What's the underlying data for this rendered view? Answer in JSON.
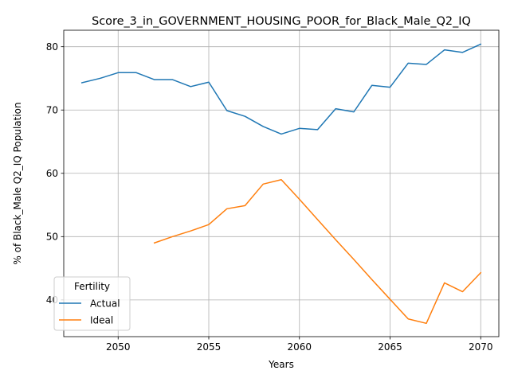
{
  "chart_data": {
    "type": "line",
    "title": "Score_3_in_GOVERNMENT_HOUSING_POOR_for_Black_Male_Q2_IQ",
    "xlabel": "Years",
    "ylabel": "% of Black_Male Q2_IQ Population",
    "xlim": [
      2047,
      2071
    ],
    "ylim": [
      34.2,
      82.6
    ],
    "xticks": [
      2050,
      2055,
      2060,
      2065,
      2070
    ],
    "yticks": [
      40,
      50,
      60,
      70,
      80
    ],
    "grid": true,
    "legend": {
      "title": "Fertility",
      "placement": "lower-left"
    },
    "series": [
      {
        "name": "Actual",
        "color": "#1f77b4",
        "x": [
          2048,
          2049,
          2050,
          2051,
          2052,
          2053,
          2054,
          2055,
          2056,
          2057,
          2058,
          2059,
          2060,
          2061,
          2062,
          2063,
          2064,
          2065,
          2066,
          2067,
          2068,
          2069,
          2070
        ],
        "values": [
          74.3,
          75.0,
          75.9,
          75.9,
          74.8,
          74.8,
          73.7,
          74.4,
          69.9,
          69.0,
          67.4,
          66.2,
          67.1,
          66.9,
          70.2,
          69.7,
          73.9,
          73.6,
          77.4,
          77.2,
          79.5,
          79.1,
          80.4
        ]
      },
      {
        "name": "Ideal",
        "color": "#ff7f0e",
        "x": [
          2052,
          2053,
          2054,
          2055,
          2056,
          2057,
          2058,
          2059,
          2060,
          2061,
          2062,
          2063,
          2064,
          2065,
          2066,
          2067,
          2068,
          2069,
          2070
        ],
        "values": [
          49.0,
          50.0,
          50.9,
          51.9,
          54.4,
          54.9,
          58.3,
          59.0,
          55.9,
          52.7,
          49.5,
          46.4,
          43.2,
          40.1,
          37.0,
          36.3,
          42.7,
          41.3,
          44.3
        ]
      }
    ]
  }
}
